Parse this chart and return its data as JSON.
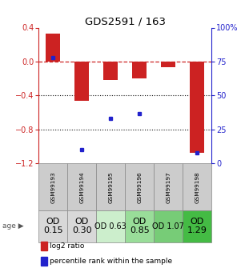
{
  "title": "GDS2591 / 163",
  "samples": [
    "GSM99193",
    "GSM99194",
    "GSM99195",
    "GSM99196",
    "GSM99197",
    "GSM99198"
  ],
  "log2_ratio": [
    0.33,
    -0.46,
    -0.22,
    -0.2,
    -0.07,
    -1.07
  ],
  "percentile_rank": [
    0.78,
    0.1,
    0.33,
    0.37,
    null,
    0.08
  ],
  "ylim_left": [
    -1.2,
    0.4
  ],
  "ylim_right": [
    0,
    100
  ],
  "yticks_left": [
    -1.2,
    -0.8,
    -0.4,
    0.0,
    0.4
  ],
  "yticks_right": [
    0,
    25,
    50,
    75,
    100
  ],
  "bar_color": "#cc2222",
  "dot_color": "#2222cc",
  "hline_color": "#cc2222",
  "dotted_color": "#111111",
  "age_labels": [
    "OD\n0.15",
    "OD\n0.30",
    "OD 0.63",
    "OD\n0.85",
    "OD 1.07",
    "OD\n1.29"
  ],
  "age_bg_colors": [
    "#d8d8d8",
    "#d8d8d8",
    "#cceecc",
    "#99dd99",
    "#77cc77",
    "#44bb44"
  ],
  "sample_bg_color": "#cccccc",
  "age_label_sizes": [
    8,
    8,
    7,
    8,
    7,
    8
  ],
  "legend_labels": [
    "log2 ratio",
    "percentile rank within the sample"
  ]
}
